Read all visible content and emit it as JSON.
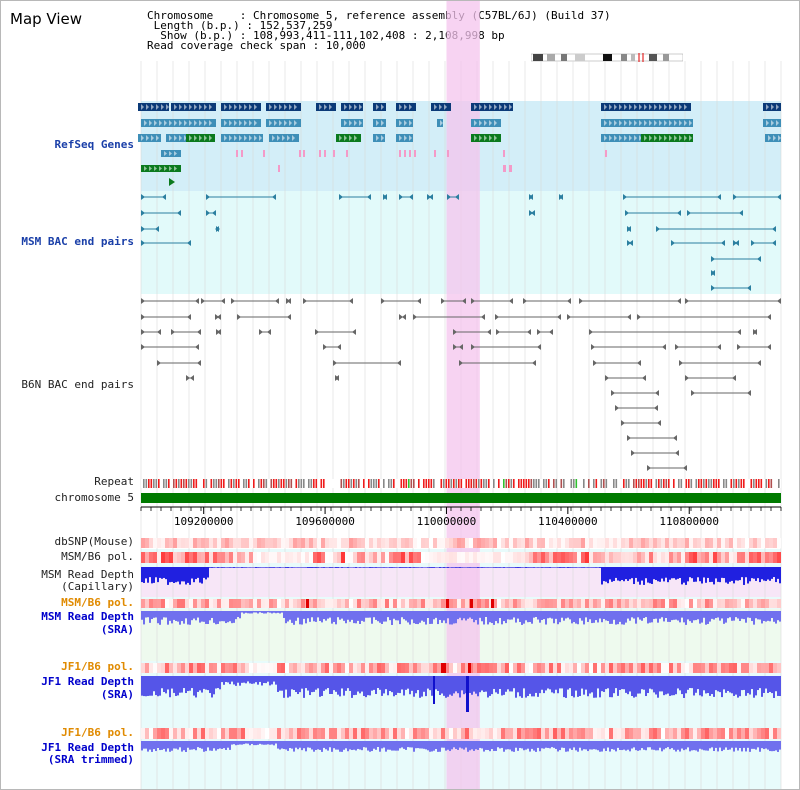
{
  "map_view": {
    "title": "Map View",
    "info": {
      "chromosome_key": "Chromosome",
      "chromosome_value": "Chromosome 5, reference assembly (C57BL/6J) (Build 37)",
      "length_key": "Length (b.p.)",
      "length_value": "152,537,259",
      "show_key": "Show (b.p.)",
      "show_value": "108,993,411-111,102,408 : 2,108,998 bp",
      "coverage_key": "Read coverage check span",
      "coverage_value": "10,000"
    },
    "colors": {
      "highlight": "#f4c4ee",
      "refseq_bg": "#d3eef8",
      "bac_bg": "#e2fafa",
      "gene_dark": "#0b3a78",
      "gene_mid": "#3e8fb8",
      "gene_green": "#0b7a1e",
      "exon_pink": "#f49ac8",
      "bac_line": "#2b7fa0",
      "b6n_line": "#666666",
      "chrom_green": "#007a00",
      "read_depth": "#2020e0",
      "read_depth_light": "#7070ee"
    },
    "tracks": {
      "refseq": "RefSeq Genes",
      "msm_bac": "MSM BAC end pairs",
      "b6n_bac": "B6N BAC end pairs",
      "repeat": "Repeat",
      "chromosome": "chromosome 5",
      "dbsnp": "dbSNP(Mouse)",
      "msm_b6_pol": "MSM/B6 pol.",
      "msm_depth_cap_1": "MSM Read Depth",
      "msm_depth_cap_2": "(Capillary)",
      "msm_b6_pol_2": "MSM/B6 pol.",
      "msm_depth_sra_1": "MSM Read Depth",
      "msm_depth_sra_2": "(SRA)",
      "jf1_b6_pol": "JF1/B6 pol.",
      "jf1_depth_sra_1": "JF1 Read Depth",
      "jf1_depth_sra_2": "(SRA)",
      "jf1_b6_pol_2": "JF1/B6 pol.",
      "jf1_depth_trim_1": "JF1 Read Depth",
      "jf1_depth_trim_2": "(SRA trimmed)"
    },
    "axis": {
      "start": 108993411,
      "end": 111102408,
      "ticks": [
        {
          "value": 109200000,
          "label": "109200000"
        },
        {
          "value": 109600000,
          "label": "109600000"
        },
        {
          "value": 110000000,
          "label": "110000000"
        },
        {
          "value": 110400000,
          "label": "110400000"
        },
        {
          "value": 110800000,
          "label": "110800000"
        }
      ],
      "highlight_range": [
        110000000,
        110110000
      ]
    }
  }
}
